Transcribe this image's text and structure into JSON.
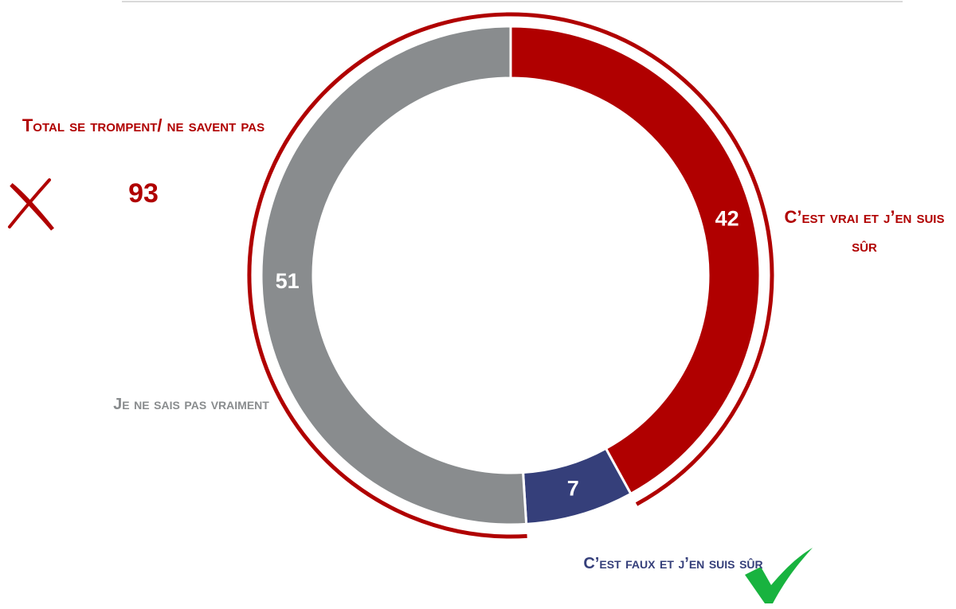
{
  "chart_data": {
    "type": "donut",
    "categories": [
      "C’est vrai et j’en suis sûr",
      "C’est faux et j’en suis sûr",
      "Je ne sais pas vraiment"
    ],
    "values": [
      42,
      7,
      51
    ],
    "colors": [
      "#b00000",
      "#353f7a",
      "#898c8e"
    ],
    "total": {
      "label": "Total se trompent/ ne savent pas",
      "value": 93,
      "color": "#b00000"
    }
  }
}
